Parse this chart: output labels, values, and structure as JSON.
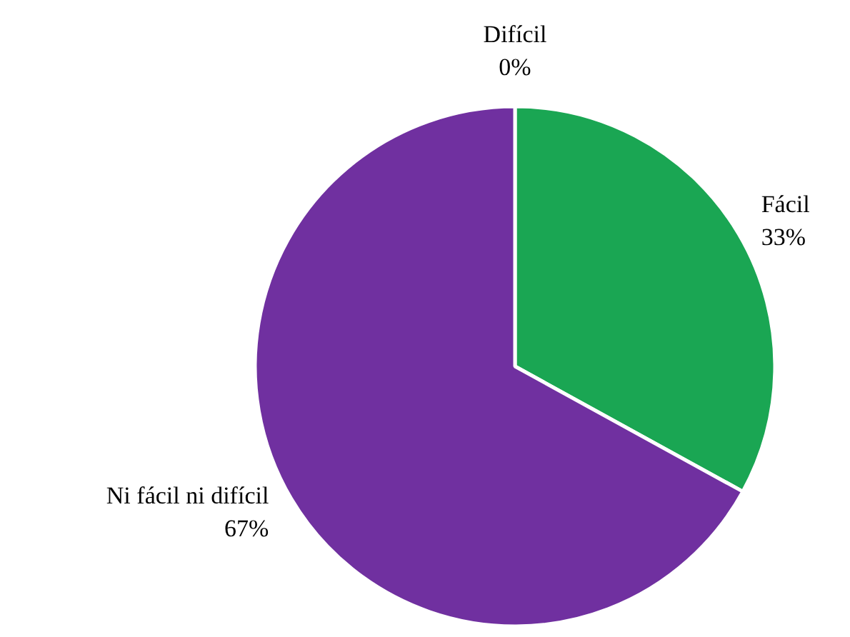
{
  "chart_data": {
    "type": "pie",
    "categories": [
      "Fácil",
      "Ni fácil ni difícil",
      "Difícil"
    ],
    "values": [
      33,
      67,
      0
    ],
    "value_labels": [
      "33%",
      "67%",
      "0%"
    ],
    "colors": [
      "#1aa653",
      "#7030a0",
      "#4472c4"
    ]
  }
}
